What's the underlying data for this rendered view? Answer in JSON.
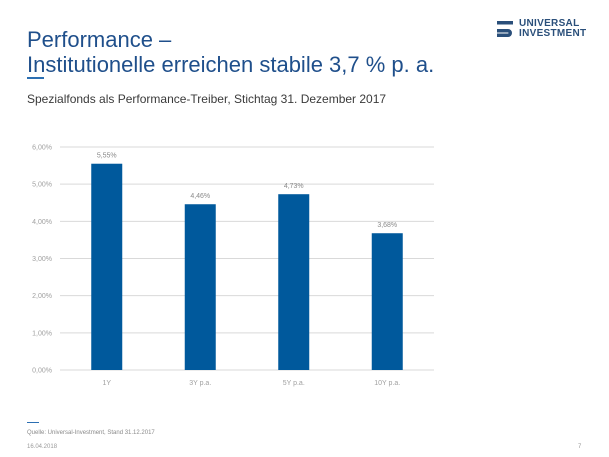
{
  "header": {
    "title_line1": "Performance –",
    "title_line2": "Institutionelle erreichen stabile 3,7 % p. a.",
    "subtitle": "Spezialfonds als Performance-Treiber, Stichtag 31. Dezember 2017"
  },
  "logo": {
    "line1": "UNIVERSAL",
    "line2": "INVESTMENT",
    "icon": "universal-investment-logo-mark",
    "color": "#2a4f7a"
  },
  "chart_data": {
    "type": "bar",
    "categories": [
      "1Y",
      "3Y p.a.",
      "5Y p.a.",
      "10Y p.a."
    ],
    "values": [
      5.55,
      4.46,
      4.73,
      3.68
    ],
    "value_labels": [
      "5,55%",
      "4,46%",
      "4,73%",
      "3,68%"
    ],
    "title": "",
    "xlabel": "",
    "ylabel": "",
    "ylim": [
      0,
      6
    ],
    "yticks": [
      0,
      1,
      2,
      3,
      4,
      5,
      6
    ],
    "ytick_labels": [
      "0,00%",
      "1,00%",
      "2,00%",
      "3,00%",
      "4,00%",
      "5,00%",
      "6,00%"
    ],
    "grid": true,
    "legend": "none",
    "bar_color": "#00599c"
  },
  "footer": {
    "source": "Quelle: Universal-Investment, Stand 31.12.2017",
    "date": "16.04.2018",
    "page_number": "7"
  }
}
